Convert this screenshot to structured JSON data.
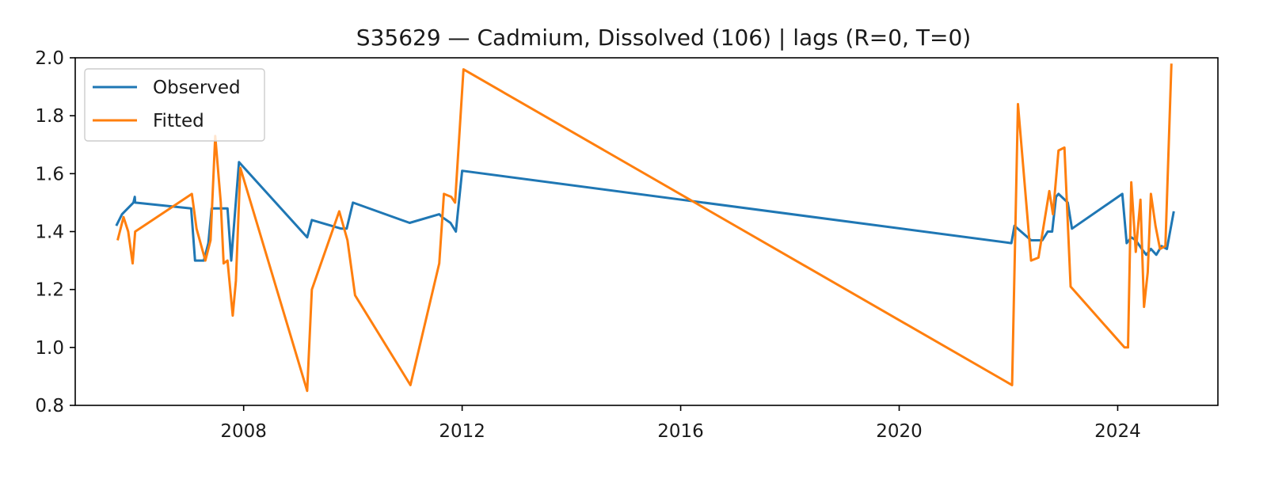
{
  "chart_data": {
    "type": "line",
    "title": "S35629 — Cadmium, Dissolved (106) | lags (R=0, T=0)",
    "xlabel": "",
    "ylabel": "",
    "x_axis_type": "date",
    "xlim": [
      "2004-12-01",
      "2025-11-01"
    ],
    "ylim": [
      0.8,
      2.0
    ],
    "xticks": [
      "2008-01-01",
      "2012-01-01",
      "2016-01-01",
      "2020-01-01",
      "2024-01-01"
    ],
    "xtick_labels": [
      "2008",
      "2012",
      "2016",
      "2020",
      "2024"
    ],
    "yticks": [
      0.8,
      1.0,
      1.2,
      1.4,
      1.6,
      1.8,
      2.0
    ],
    "ytick_labels": [
      "0.8",
      "1.0",
      "1.2",
      "1.4",
      "1.6",
      "1.8",
      "2.0"
    ],
    "grid": false,
    "legend_position": "upper-left",
    "series": [
      {
        "name": "Observed",
        "color": "#1f77b4",
        "points": [
          [
            "2005-09-01",
            1.42
          ],
          [
            "2005-10-10",
            1.46
          ],
          [
            "2005-12-25",
            1.5
          ],
          [
            "2006-01-03",
            1.52
          ],
          [
            "2006-01-06",
            1.5
          ],
          [
            "2007-01-15",
            1.48
          ],
          [
            "2007-02-10",
            1.3
          ],
          [
            "2007-04-10",
            1.3
          ],
          [
            "2007-05-10",
            1.36
          ],
          [
            "2007-06-01",
            1.48
          ],
          [
            "2007-09-15",
            1.48
          ],
          [
            "2007-10-10",
            1.3
          ],
          [
            "2007-12-01",
            1.64
          ],
          [
            "2009-03-01",
            1.38
          ],
          [
            "2009-04-01",
            1.44
          ],
          [
            "2009-10-15",
            1.41
          ],
          [
            "2009-11-20",
            1.41
          ],
          [
            "2010-01-01",
            1.5
          ],
          [
            "2011-01-15",
            1.43
          ],
          [
            "2011-08-01",
            1.46
          ],
          [
            "2011-08-20",
            1.45
          ],
          [
            "2011-10-15",
            1.43
          ],
          [
            "2011-11-20",
            1.4
          ],
          [
            "2012-01-01",
            1.61
          ],
          [
            "2022-01-20",
            1.36
          ],
          [
            "2022-02-10",
            1.42
          ],
          [
            "2022-06-01",
            1.37
          ],
          [
            "2022-08-15",
            1.37
          ],
          [
            "2022-09-20",
            1.4
          ],
          [
            "2022-10-20",
            1.4
          ],
          [
            "2022-11-15",
            1.52
          ],
          [
            "2022-12-01",
            1.53
          ],
          [
            "2023-02-01",
            1.5
          ],
          [
            "2023-03-01",
            1.41
          ],
          [
            "2024-02-01",
            1.53
          ],
          [
            "2024-03-01",
            1.36
          ],
          [
            "2024-04-01",
            1.38
          ],
          [
            "2024-05-01",
            1.37
          ],
          [
            "2024-06-10",
            1.34
          ],
          [
            "2024-07-10",
            1.32
          ],
          [
            "2024-08-10",
            1.34
          ],
          [
            "2024-09-15",
            1.32
          ],
          [
            "2024-10-20",
            1.35
          ],
          [
            "2024-11-25",
            1.34
          ],
          [
            "2025-01-10",
            1.47
          ]
        ]
      },
      {
        "name": "Fitted",
        "color": "#ff7f0e",
        "points": [
          [
            "2005-09-10",
            1.37
          ],
          [
            "2005-10-20",
            1.45
          ],
          [
            "2005-11-20",
            1.4
          ],
          [
            "2005-12-20",
            1.29
          ],
          [
            "2006-01-06",
            1.4
          ],
          [
            "2007-01-20",
            1.53
          ],
          [
            "2007-02-20",
            1.41
          ],
          [
            "2007-04-20",
            1.3
          ],
          [
            "2007-05-25",
            1.37
          ],
          [
            "2007-06-25",
            1.73
          ],
          [
            "2007-08-01",
            1.5
          ],
          [
            "2007-08-20",
            1.29
          ],
          [
            "2007-09-15",
            1.3
          ],
          [
            "2007-10-20",
            1.11
          ],
          [
            "2007-11-10",
            1.23
          ],
          [
            "2007-12-10",
            1.62
          ],
          [
            "2009-03-01",
            0.85
          ],
          [
            "2009-04-01",
            1.2
          ],
          [
            "2009-10-01",
            1.47
          ],
          [
            "2009-11-25",
            1.37
          ],
          [
            "2010-01-15",
            1.18
          ],
          [
            "2011-01-20",
            0.87
          ],
          [
            "2011-08-01",
            1.29
          ],
          [
            "2011-09-01",
            1.53
          ],
          [
            "2011-10-20",
            1.52
          ],
          [
            "2011-11-15",
            1.5
          ],
          [
            "2012-01-10",
            1.96
          ],
          [
            "2022-01-25",
            0.87
          ],
          [
            "2022-03-05",
            1.84
          ],
          [
            "2022-06-01",
            1.3
          ],
          [
            "2022-07-20",
            1.31
          ],
          [
            "2022-10-01",
            1.54
          ],
          [
            "2022-10-25",
            1.46
          ],
          [
            "2022-12-01",
            1.68
          ],
          [
            "2023-01-10",
            1.69
          ],
          [
            "2023-02-20",
            1.21
          ],
          [
            "2024-02-15",
            1.0
          ],
          [
            "2024-03-10",
            1.0
          ],
          [
            "2024-04-01",
            1.57
          ],
          [
            "2024-05-01",
            1.33
          ],
          [
            "2024-06-01",
            1.51
          ],
          [
            "2024-06-25",
            1.14
          ],
          [
            "2024-07-20",
            1.26
          ],
          [
            "2024-08-10",
            1.53
          ],
          [
            "2024-09-10",
            1.42
          ],
          [
            "2024-10-10",
            1.34
          ],
          [
            "2024-11-15",
            1.35
          ],
          [
            "2024-12-25",
            1.98
          ]
        ]
      }
    ]
  }
}
